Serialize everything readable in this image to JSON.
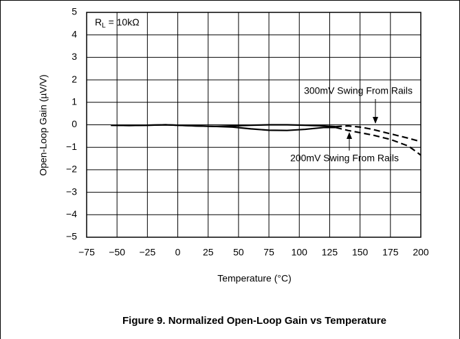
{
  "chart_data": {
    "type": "line",
    "caption": "Figure 9. Normalized Open-Loop Gain vs Temperature",
    "x_label": "Temperature (°C)",
    "y_label": "Open-Loop Gain (µV/V)",
    "annotation": {
      "text": "R",
      "sub": "L",
      "rest": " = 10kΩ"
    },
    "xlim": [
      -75,
      200
    ],
    "xticks": [
      {
        "value": -75,
        "label": "−75"
      },
      {
        "value": -50,
        "label": "−50"
      },
      {
        "value": -25,
        "label": "−25"
      },
      0,
      25,
      50,
      75,
      100,
      125,
      150,
      175,
      200
    ],
    "ylim": [
      -5,
      5
    ],
    "yticks": [
      {
        "value": -5,
        "label": "−5"
      },
      {
        "value": -4,
        "label": "−4"
      },
      {
        "value": -3,
        "label": "−3"
      },
      {
        "value": -2,
        "label": "−2"
      },
      {
        "value": -1,
        "label": "−1"
      },
      0,
      1,
      2,
      3,
      4,
      5
    ],
    "grid": true,
    "dashed_after": 130,
    "series": [
      {
        "name": "300mV Swing From Rails",
        "color": "#000000",
        "x": [
          -55,
          -40,
          -25,
          -10,
          0,
          15,
          30,
          45,
          60,
          75,
          90,
          105,
          120,
          130,
          140,
          150,
          160,
          175,
          190,
          200
        ],
        "values": [
          -0.02,
          -0.03,
          -0.02,
          0,
          -0.02,
          -0.05,
          -0.07,
          -0.05,
          -0.02,
          0,
          0,
          -0.02,
          -0.05,
          -0.08,
          -0.05,
          -0.1,
          -0.2,
          -0.4,
          -0.6,
          -0.75
        ]
      },
      {
        "name": "200mV Swing From Rails",
        "color": "#000000",
        "x": [
          -55,
          -40,
          -25,
          -10,
          0,
          15,
          30,
          45,
          60,
          75,
          90,
          105,
          120,
          130,
          140,
          150,
          160,
          175,
          190,
          200
        ],
        "values": [
          -0.02,
          -0.03,
          -0.02,
          0,
          -0.02,
          -0.05,
          -0.07,
          -0.1,
          -0.18,
          -0.24,
          -0.25,
          -0.2,
          -0.12,
          -0.12,
          -0.25,
          -0.35,
          -0.45,
          -0.65,
          -0.95,
          -1.35
        ]
      }
    ]
  }
}
